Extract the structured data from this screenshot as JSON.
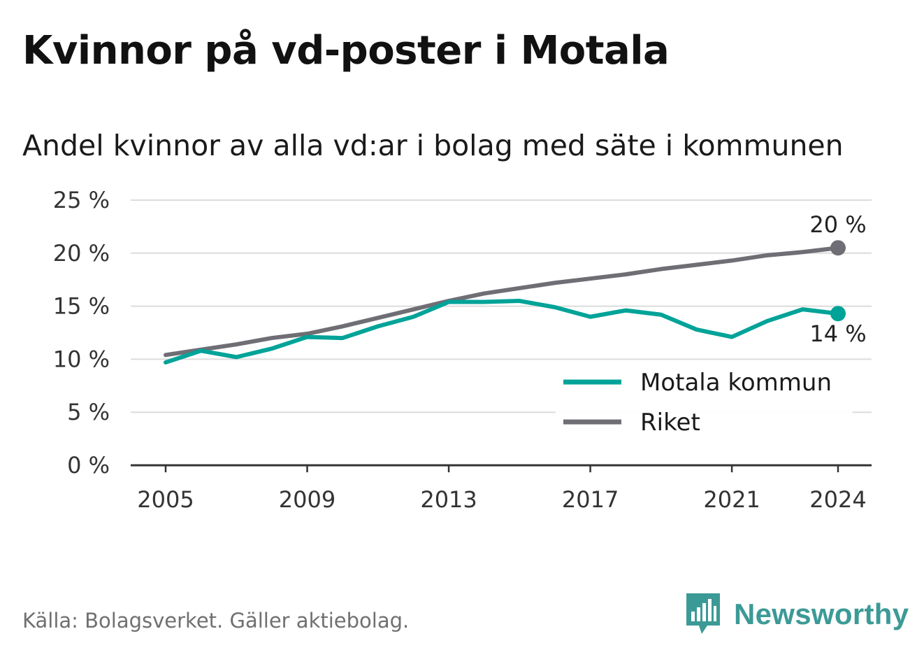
{
  "title": "Kvinnor på vd-poster i Motala",
  "subtitle": "Andel kvinnor av alla vd:ar i bolag med säte i kommunen",
  "source": "Källa: Bolagsverket. Gäller aktiebolag.",
  "brand": {
    "name": "Newsworthy",
    "icon": "newsworthy-logo-icon",
    "color": "#3c9a96"
  },
  "chart_data": {
    "type": "line",
    "title": "Kvinnor på vd-poster i Motala",
    "subtitle": "Andel kvinnor av alla vd:ar i bolag med säte i kommunen",
    "ylim": [
      0,
      25
    ],
    "yticks": [
      0,
      5,
      10,
      15,
      20,
      25
    ],
    "ytick_labels": [
      "0 %",
      "5 %",
      "10 %",
      "15 %",
      "20 %",
      "25 %"
    ],
    "xticks": [
      2005,
      2009,
      2013,
      2017,
      2021,
      2024
    ],
    "xtick_labels": [
      "2005",
      "2009",
      "2013",
      "2017",
      "2021",
      "2024"
    ],
    "grid": true,
    "legend_position": "bottom-right",
    "x": [
      2005,
      2006,
      2007,
      2008,
      2009,
      2010,
      2011,
      2012,
      2013,
      2014,
      2015,
      2016,
      2017,
      2018,
      2019,
      2020,
      2021,
      2022,
      2023,
      2024
    ],
    "series": [
      {
        "name": "Motala kommun",
        "color": "#00a398",
        "values": [
          9.7,
          10.8,
          10.2,
          11.0,
          12.1,
          12.0,
          13.1,
          14.0,
          15.4,
          15.4,
          15.5,
          14.9,
          14.0,
          14.6,
          14.2,
          12.8,
          12.1,
          13.6,
          14.7,
          14.3
        ],
        "end_label": "14 %"
      },
      {
        "name": "Riket",
        "color": "#6f6e75",
        "values": [
          10.4,
          10.9,
          11.4,
          12.0,
          12.4,
          13.1,
          13.9,
          14.7,
          15.5,
          16.2,
          16.7,
          17.2,
          17.6,
          18.0,
          18.5,
          18.9,
          19.3,
          19.8,
          20.1,
          20.5
        ],
        "end_label": "20 %"
      }
    ]
  }
}
